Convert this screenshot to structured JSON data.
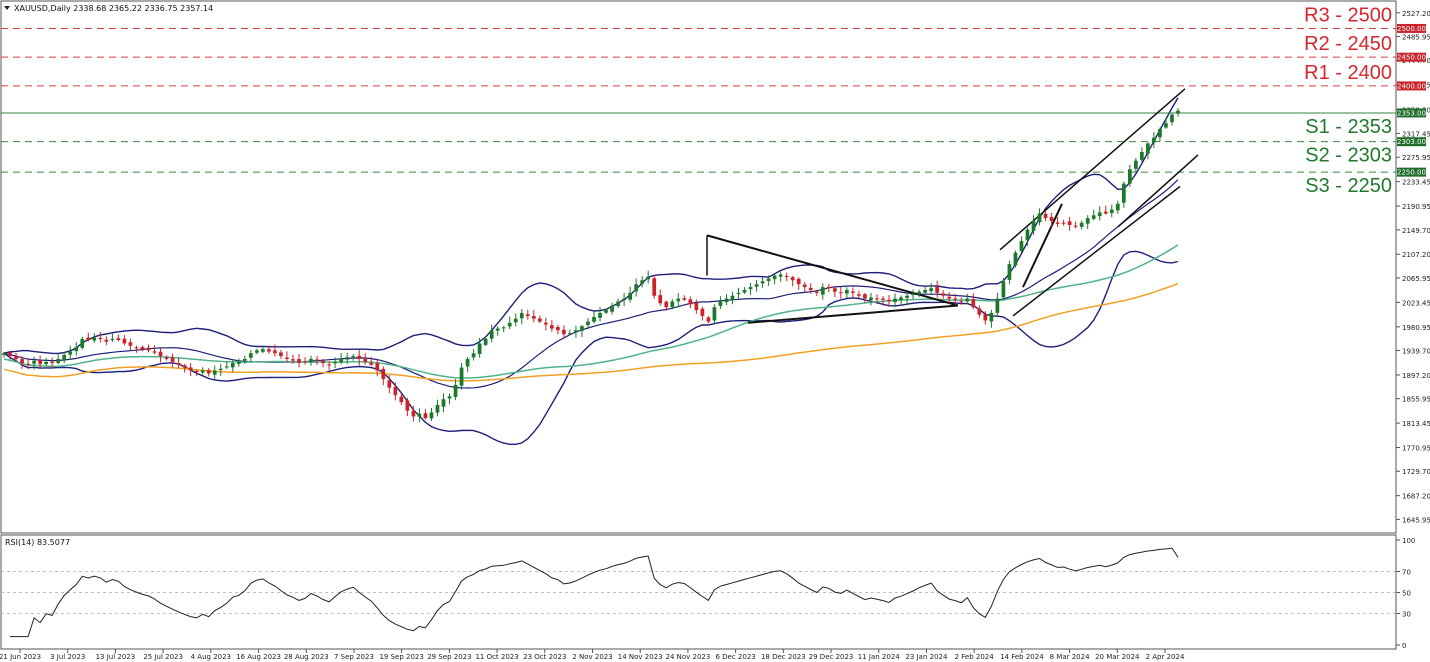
{
  "header": {
    "symbol_line": "XAUUSD,Daily  2338.68 2365.22 2336.75 2357.14",
    "menu_icon": "triangle-down-icon"
  },
  "rsi_panel": {
    "label": "RSI(14) 83.5077"
  },
  "colors": {
    "bull": "#1a7a2a",
    "bear": "#c8242a",
    "resistance": "#d7262e",
    "support": "#217a2c",
    "bollinger": "#1d1f7a",
    "ma_fast": "#4fb48a",
    "ma_slow": "#f2a024",
    "rsi_line": "#222222",
    "grid": "#bfbfbf",
    "level_tag_res": "#c8242a",
    "level_tag_sup": "#1f6f2a"
  },
  "levels": [
    {
      "label": "R3 - 2500",
      "value": 2500,
      "tag": "2500.00",
      "kind": "resistance"
    },
    {
      "label": "R2 - 2450",
      "value": 2450,
      "tag": "2450.00",
      "kind": "resistance"
    },
    {
      "label": "R1 - 2400",
      "value": 2400,
      "tag": "2400.00",
      "kind": "resistance"
    },
    {
      "label": "S1 - 2353",
      "value": 2353,
      "tag": "2353.00",
      "kind": "support"
    },
    {
      "label": "S2 - 2303",
      "value": 2303,
      "tag": "2303.00",
      "kind": "support"
    },
    {
      "label": "S3 - 2250",
      "value": 2250,
      "tag": "2250.00",
      "kind": "support"
    }
  ],
  "chart_data": {
    "type": "candlestick",
    "title": "XAUUSD,Daily",
    "ylim": [
      1624,
      2546
    ],
    "y_ticks": [
      "2527.20",
      "2485.95",
      "2444.70",
      "2402.45",
      "2359.20",
      "2317.45",
      "2275.95",
      "2233.45",
      "2190.95",
      "2149.70",
      "2107.20",
      "2065.95",
      "2023.45",
      "1980.95",
      "1939.70",
      "1897.20",
      "1855.95",
      "1813.45",
      "1770.95",
      "1729.70",
      "1687.20",
      "1645.95"
    ],
    "x_labels": [
      "21 Jun 2023",
      "3 Jul 2023",
      "13 Jul 2023",
      "25 Jul 2023",
      "4 Aug 2023",
      "16 Aug 2023",
      "28 Aug 2023",
      "7 Sep 2023",
      "19 Sep 2023",
      "29 Sep 2023",
      "11 Oct 2023",
      "23 Oct 2023",
      "2 Nov 2023",
      "14 Nov 2023",
      "24 Nov 2023",
      "6 Dec 2023",
      "18 Dec 2023",
      "29 Dec 2023",
      "11 Jan 2024",
      "23 Jan 2024",
      "2 Feb 2024",
      "14 Feb 2024",
      "8 Mar 2024",
      "20 Mar 2024",
      "2 Apr 2024"
    ],
    "close_path": [
      1935,
      1930,
      1925,
      1918,
      1915,
      1922,
      1916,
      1920,
      1918,
      1925,
      1932,
      1938,
      1945,
      1960,
      1958,
      1962,
      1960,
      1955,
      1960,
      1958,
      1952,
      1948,
      1945,
      1942,
      1940,
      1936,
      1930,
      1925,
      1920,
      1915,
      1910,
      1905,
      1902,
      1905,
      1900,
      1905,
      1908,
      1912,
      1918,
      1920,
      1925,
      1935,
      1940,
      1942,
      1938,
      1935,
      1930,
      1925,
      1922,
      1918,
      1920,
      1925,
      1922,
      1918,
      1915,
      1920,
      1925,
      1928,
      1930,
      1925,
      1920,
      1915,
      1905,
      1890,
      1875,
      1862,
      1850,
      1835,
      1825,
      1830,
      1822,
      1832,
      1845,
      1855,
      1860,
      1880,
      1910,
      1925,
      1935,
      1952,
      1960,
      1975,
      1978,
      1980,
      1988,
      1995,
      2005,
      2000,
      1995,
      1990,
      1985,
      1978,
      1975,
      1968,
      1970,
      1975,
      1982,
      1990,
      1998,
      2005,
      2010,
      2018,
      2025,
      2030,
      2040,
      2055,
      2062,
      2068,
      2035,
      2022,
      2015,
      2025,
      2030,
      2028,
      2020,
      2010,
      2000,
      1990,
      2015,
      2025,
      2030,
      2035,
      2040,
      2045,
      2050,
      2055,
      2060,
      2065,
      2070,
      2072,
      2068,
      2062,
      2055,
      2050,
      2045,
      2040,
      2050,
      2048,
      2042,
      2040,
      2045,
      2040,
      2035,
      2030,
      2032,
      2030,
      2028,
      2025,
      2030,
      2032,
      2035,
      2038,
      2042,
      2045,
      2048,
      2040,
      2035,
      2030,
      2028,
      2025,
      2030,
      2015,
      2002,
      1992,
      2005,
      2030,
      2060,
      2090,
      2110,
      2130,
      2150,
      2165,
      2178,
      2170,
      2165,
      2160,
      2162,
      2158,
      2155,
      2162,
      2170,
      2175,
      2180,
      2178,
      2185,
      2195,
      2230,
      2255,
      2270,
      2285,
      2300,
      2310,
      2325,
      2335,
      2350,
      2357
    ],
    "bollinger": {
      "period": 20,
      "deviations": 2
    },
    "ma_fast_period": 50,
    "ma_slow_period": 100,
    "trendlines_note": "triangle pattern Dec 2023 - Feb 2024, upward channel Feb - Apr 2024",
    "rsi": {
      "period": 14,
      "value": 83.5077,
      "ylim": [
        0,
        100
      ],
      "ticks": [
        "100",
        "70",
        "50",
        "30",
        "0"
      ],
      "levels": [
        70,
        50,
        30
      ]
    }
  }
}
